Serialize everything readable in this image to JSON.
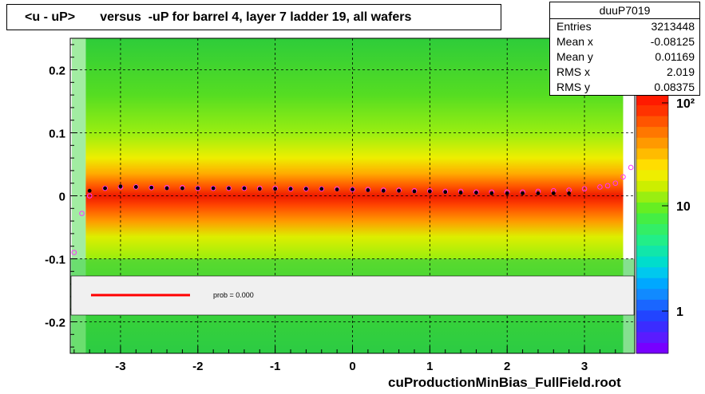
{
  "title": "<u - uP>       versus  -uP for barrel 4, layer 7 ladder 19, all wafers",
  "footer": "cuProductionMinBias_FullField.root",
  "stats": {
    "name": "duuP7019",
    "rows": [
      {
        "label": "Entries",
        "value": "3213448"
      },
      {
        "label": "Mean x",
        "value": "-0.08125"
      },
      {
        "label": "Mean y",
        "value": "0.01169"
      },
      {
        "label": "RMS x",
        "value": "2.019"
      },
      {
        "label": "RMS y",
        "value": "0.08375"
      }
    ]
  },
  "legend": {
    "text": "prob = 0.000",
    "line_color": "#ff0000"
  },
  "chart_data": {
    "type": "heatmap",
    "title": "<u - uP>       versus  -uP for barrel 4, layer 7 ladder 19, all wafers",
    "xlabel": "",
    "ylabel": "",
    "xlim": [
      -3.65,
      3.65
    ],
    "ylim": [
      -0.25,
      0.25
    ],
    "x_ticks": [
      "-3",
      "-2",
      "-1",
      "0",
      "1",
      "2",
      "3"
    ],
    "y_ticks": [
      "0.2",
      "0.1",
      "0",
      "-0.1",
      "-0.2"
    ],
    "grid": true,
    "colorbar": {
      "scale": "log",
      "ticks": [
        "1",
        "10",
        "10²"
      ]
    },
    "profile_series": {
      "name": "black profile points",
      "x": [
        -3.4,
        -3.2,
        -3.0,
        -2.8,
        -2.6,
        -2.4,
        -2.2,
        -2.0,
        -1.8,
        -1.6,
        -1.4,
        -1.2,
        -1.0,
        -0.8,
        -0.6,
        -0.4,
        -0.2,
        0.0,
        0.2,
        0.4,
        0.6,
        0.8,
        1.0,
        1.2,
        1.4,
        1.6,
        1.8,
        2.0,
        2.2,
        2.4,
        2.6,
        2.8
      ],
      "y": [
        0.008,
        0.012,
        0.015,
        0.014,
        0.013,
        0.012,
        0.012,
        0.012,
        0.012,
        0.012,
        0.012,
        0.011,
        0.011,
        0.011,
        0.011,
        0.011,
        0.01,
        0.01,
        0.009,
        0.008,
        0.008,
        0.007,
        0.007,
        0.006,
        0.005,
        0.005,
        0.004,
        0.004,
        0.004,
        0.004,
        0.004,
        0.004
      ]
    },
    "fit_series": {
      "name": "magenta fit points",
      "x": [
        -3.6,
        -3.5,
        -3.4,
        -3.2,
        -3.0,
        -2.8,
        -2.6,
        -2.4,
        -2.2,
        -2.0,
        -1.8,
        -1.6,
        -1.4,
        -1.2,
        -1.0,
        -0.8,
        -0.6,
        -0.4,
        -0.2,
        0.0,
        0.2,
        0.4,
        0.6,
        0.8,
        1.0,
        1.2,
        1.4,
        1.6,
        1.8,
        2.0,
        2.2,
        2.4,
        2.6,
        2.8,
        3.0,
        3.2,
        3.3,
        3.4,
        3.5,
        3.6
      ],
      "y": [
        -0.09,
        -0.028,
        0.0,
        0.012,
        0.014,
        0.014,
        0.013,
        0.013,
        0.013,
        0.012,
        0.012,
        0.012,
        0.012,
        0.012,
        0.012,
        0.011,
        0.011,
        0.011,
        0.011,
        0.01,
        0.01,
        0.009,
        0.009,
        0.008,
        0.008,
        0.007,
        0.007,
        0.006,
        0.006,
        0.006,
        0.006,
        0.007,
        0.008,
        0.009,
        0.011,
        0.014,
        0.016,
        0.02,
        0.03,
        0.045
      ]
    }
  }
}
